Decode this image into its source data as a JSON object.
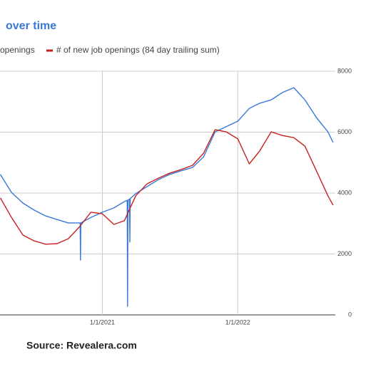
{
  "chart_data": {
    "type": "line",
    "title": "over time",
    "source": "Source: Revealera.com",
    "xlim": [
      "2020-03-31",
      "2022-09-21"
    ],
    "xticks": [
      {
        "value": "2021-01-01",
        "label": "1/1/2021"
      },
      {
        "value": "2022-01-01",
        "label": "1/1/2022"
      }
    ],
    "ylim": [
      0,
      8000
    ],
    "yticks": [
      0,
      2000,
      4000,
      6000,
      8000
    ],
    "grid": true,
    "series": [
      {
        "name": "openings",
        "color": "#3a78d8",
        "x": [
          "2020-04-01",
          "2020-05-01",
          "2020-06-01",
          "2020-07-01",
          "2020-08-01",
          "2020-09-01",
          "2020-10-01",
          "2020-11-02",
          "2020-11-03",
          "2020-11-04",
          "2020-12-01",
          "2021-01-01",
          "2021-02-01",
          "2021-03-01",
          "2021-03-09",
          "2021-03-10",
          "2021-03-11",
          "2021-03-15",
          "2021-03-16",
          "2021-03-17",
          "2021-04-01",
          "2021-05-01",
          "2021-06-01",
          "2021-07-01",
          "2021-08-01",
          "2021-09-01",
          "2021-10-01",
          "2021-11-01",
          "2021-12-01",
          "2022-01-01",
          "2022-02-01",
          "2022-03-01",
          "2022-04-01",
          "2022-05-01",
          "2022-06-01",
          "2022-07-01",
          "2022-08-01",
          "2022-09-01",
          "2022-09-15"
        ],
        "values": [
          4610,
          4020,
          3670,
          3440,
          3250,
          3130,
          3020,
          3020,
          1800,
          3020,
          3200,
          3370,
          3510,
          3720,
          3760,
          280,
          3770,
          3800,
          2390,
          3820,
          3980,
          4210,
          4440,
          4610,
          4730,
          4840,
          5190,
          6010,
          6180,
          6360,
          6780,
          6950,
          7060,
          7300,
          7460,
          7060,
          6480,
          6010,
          5660
        ]
      },
      {
        "name": "# of new job openings (84 day trailing sum)",
        "color": "#c5221f",
        "x": [
          "2020-04-01",
          "2020-05-01",
          "2020-06-01",
          "2020-07-01",
          "2020-08-01",
          "2020-09-01",
          "2020-10-01",
          "2020-11-01",
          "2020-12-01",
          "2021-01-01",
          "2021-02-01",
          "2021-03-01",
          "2021-04-01",
          "2021-05-01",
          "2021-06-01",
          "2021-07-01",
          "2021-08-01",
          "2021-09-01",
          "2021-10-01",
          "2021-11-01",
          "2021-12-01",
          "2022-01-01",
          "2022-02-01",
          "2022-03-01",
          "2022-04-01",
          "2022-05-01",
          "2022-06-01",
          "2022-07-01",
          "2022-08-01",
          "2022-09-01",
          "2022-09-15"
        ],
        "values": [
          3840,
          3200,
          2620,
          2430,
          2320,
          2340,
          2500,
          2900,
          3370,
          3320,
          2970,
          3090,
          3910,
          4300,
          4490,
          4650,
          4770,
          4910,
          5310,
          6080,
          6010,
          5780,
          4960,
          5380,
          6010,
          5890,
          5820,
          5540,
          4730,
          3910,
          3600
        ]
      }
    ]
  }
}
